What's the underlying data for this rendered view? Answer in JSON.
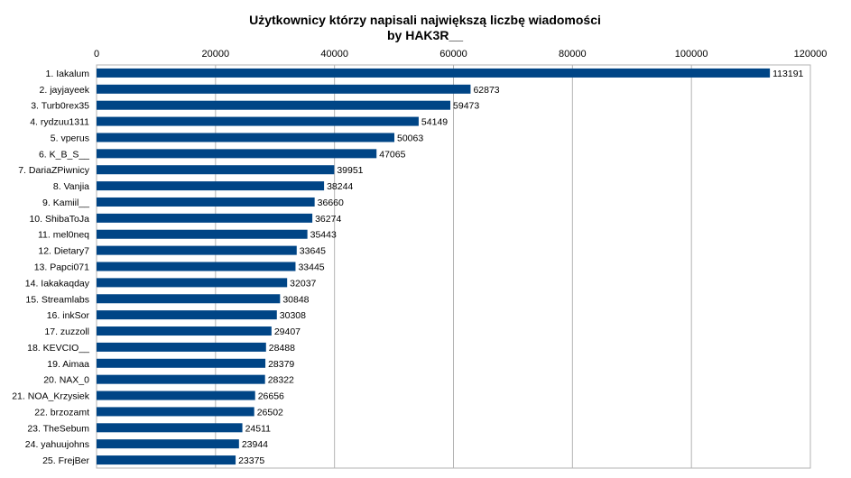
{
  "chart_data": {
    "type": "bar",
    "orientation": "horizontal",
    "title": "Użytkownicy którzy napisali największą liczbę wiadomości",
    "subtitle": "by HAK3R__",
    "x_axis_position": "top",
    "xlim": [
      0,
      120000
    ],
    "xticks": [
      0,
      20000,
      40000,
      60000,
      80000,
      100000,
      120000
    ],
    "grid": true,
    "legend": "none",
    "bar_color": "#004586",
    "categories": [
      "1. Iakalum",
      "2. jayjayeek",
      "3. Turb0rex35",
      "4. rydzuu1311",
      "5. vperus",
      "6. K_B_S__",
      "7. DariaZPiwnicy",
      "8. Vanjia",
      "9. Kamiil__",
      "10. ShibaToJa",
      "11. mel0neq",
      "12. Dietary7",
      "13. Papci071",
      "14. Iakakaqday",
      "15. Streamlabs",
      "16. inkSor",
      "17. zuzzoll",
      "18. KEVCIO__",
      "19. Aimaa",
      "20. NAX_0",
      "21. NOA_Krzysiek",
      "22. brzozamt",
      "23. TheSebum",
      "24. yahuujohns",
      "25. FrejBer"
    ],
    "values": [
      113191,
      62873,
      59473,
      54149,
      50063,
      47065,
      39951,
      38244,
      36660,
      36274,
      35443,
      33645,
      33445,
      32037,
      30848,
      30308,
      29407,
      28488,
      28379,
      28322,
      26656,
      26502,
      24511,
      23944,
      23375
    ]
  }
}
